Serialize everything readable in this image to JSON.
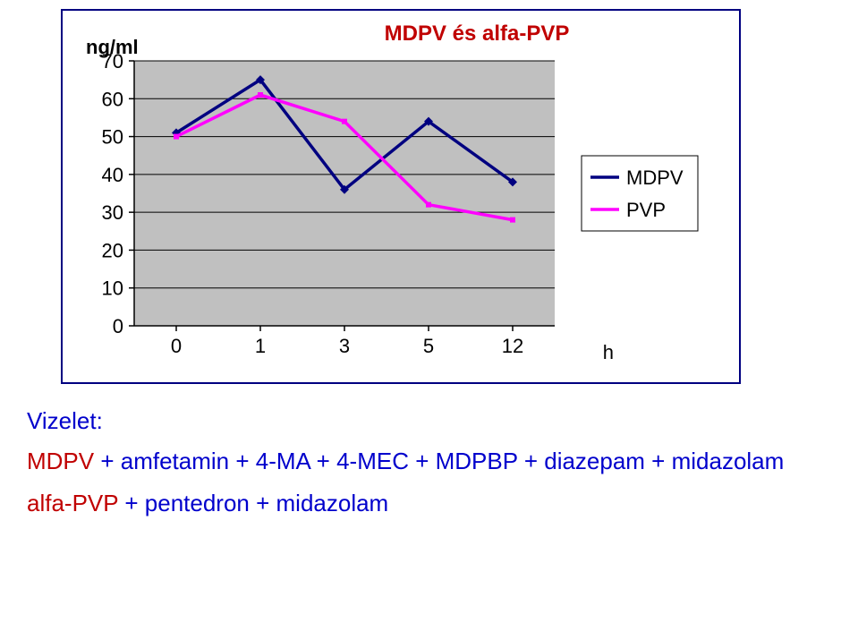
{
  "chart": {
    "type": "line",
    "title": "MDPV és alfa-PVP",
    "title_fontsize": 24,
    "title_color": "#c00000",
    "y_axis_label": "ng/ml",
    "y_axis_label_fontsize": 22,
    "x_axis_label": "h",
    "x_axis_label_fontsize": 22,
    "background_color": "#ffffff",
    "plot_bg_color": "#c0c0c0",
    "grid_color": "#000000",
    "frame_border_color": "#000080",
    "axis_color": "#000000",
    "tick_fontsize": 22,
    "x_categories": [
      "0",
      "1",
      "3",
      "5",
      "12"
    ],
    "y_ticks": [
      0,
      10,
      20,
      30,
      40,
      50,
      60,
      70
    ],
    "ylim": [
      0,
      70
    ],
    "series": [
      {
        "name": "MDPV",
        "color": "#000080",
        "line_width": 3.5,
        "marker": "diamond",
        "marker_size": 7,
        "marker_color": "#000080",
        "values": [
          51,
          65,
          36,
          54,
          38
        ]
      },
      {
        "name": "PVP",
        "color": "#ff00ff",
        "line_width": 3.5,
        "marker": "square",
        "marker_size": 6,
        "marker_color": "#ff00ff",
        "values": [
          50,
          61,
          54,
          32,
          28
        ]
      }
    ],
    "legend": {
      "position": "right",
      "border_color": "#000000",
      "bg_color": "#ffffff",
      "fontsize": 22,
      "text_color": "#000000"
    }
  },
  "notes": {
    "label": "Vizelet:",
    "label_fontsize": 26,
    "text_color": "#0000cc",
    "line1_prefix": "MDPV",
    "line1_rest": " + amfetamin + 4-MA + 4-MEC + MDPBP + diazepam + midazolam",
    "line2_prefix": "alfa-PVP",
    "line2_rest": " + pentedron + midazolam",
    "line_fontsize": 26,
    "prefix_color": "#c00000"
  }
}
